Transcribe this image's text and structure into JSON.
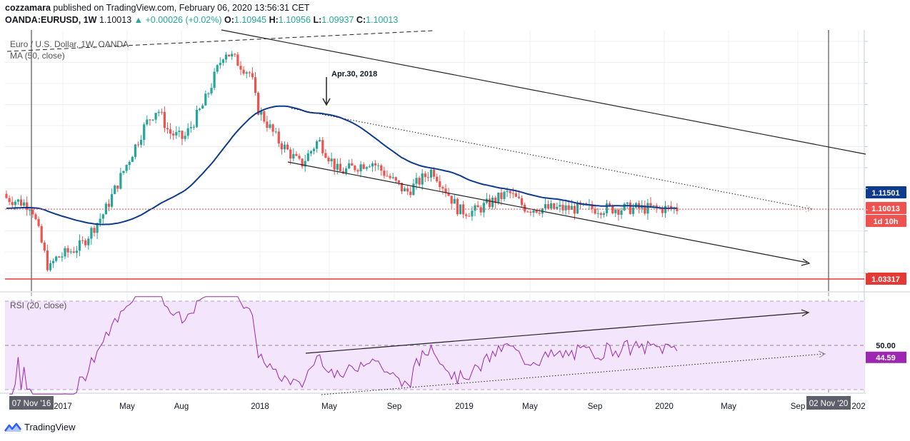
{
  "header": {
    "author": "cozzamara",
    "published_text": "published on TradingView.com, February 06, 2020 13:56:31 CET",
    "symbol": "OANDA:EURUSD, 1W",
    "last": "1.10013",
    "change": "▲ +0.00026 (+0.02%)",
    "o_label": "O:",
    "o": "1.10945",
    "h_label": "H:",
    "h": "1.10956",
    "l_label": "L:",
    "l": "1.09937",
    "c_label": "C:",
    "c": "1.10013"
  },
  "chart_data": [
    {
      "type": "candlestick",
      "title": "Euro / U.S. Dollar, 1W, OANDA",
      "indicator": "MA (50, close)",
      "annotation": "Apr.30, 2018",
      "x_ticks": [
        "07 Nov '16",
        "2017",
        "May",
        "Aug",
        "2018",
        "May",
        "Sep",
        "2019",
        "May",
        "Sep",
        "2020",
        "May",
        "Sep",
        "02 Nov '20",
        "202"
      ],
      "price_labels": [
        {
          "label": "1.11501",
          "value": 1.11501,
          "meaning": "MA (50) value",
          "color": "#0d3b8e"
        },
        {
          "label": "1.10013",
          "value": 1.10013,
          "meaning": "last price",
          "color": "#ef5350"
        },
        {
          "label": "1d 10h",
          "meaning": "time to bar close",
          "color": "#ef5350"
        },
        {
          "label": "1.03317",
          "value": 1.03317,
          "meaning": "horizontal level",
          "color": "#e53935"
        }
      ],
      "close_series_approx": [
        {
          "date": "2016-11-07",
          "close": 1.103
        },
        {
          "date": "2016-12-19",
          "close": 1.041
        },
        {
          "date": "2017-01-02",
          "close": 1.052
        },
        {
          "date": "2017-03-06",
          "close": 1.065
        },
        {
          "date": "2017-05-01",
          "close": 1.097
        },
        {
          "date": "2017-06-05",
          "close": 1.127
        },
        {
          "date": "2017-08-07",
          "close": 1.18
        },
        {
          "date": "2017-09-04",
          "close": 1.195
        },
        {
          "date": "2017-10-02",
          "close": 1.172
        },
        {
          "date": "2017-11-06",
          "close": 1.166
        },
        {
          "date": "2017-12-25",
          "close": 1.2
        },
        {
          "date": "2018-02-12",
          "close": 1.25
        },
        {
          "date": "2018-04-16",
          "close": 1.227
        },
        {
          "date": "2018-04-30",
          "close": 1.196
        },
        {
          "date": "2018-06-18",
          "close": 1.165
        },
        {
          "date": "2018-08-13",
          "close": 1.141
        },
        {
          "date": "2018-09-24",
          "close": 1.165
        },
        {
          "date": "2018-11-12",
          "close": 1.134
        },
        {
          "date": "2019-01-28",
          "close": 1.145
        },
        {
          "date": "2019-04-22",
          "close": 1.115
        },
        {
          "date": "2019-06-24",
          "close": 1.137
        },
        {
          "date": "2019-08-26",
          "close": 1.098
        },
        {
          "date": "2019-09-30",
          "close": 1.097
        },
        {
          "date": "2019-12-23",
          "close": 1.115
        },
        {
          "date": "2020-02-03",
          "close": 1.1
        }
      ]
    },
    {
      "type": "line",
      "title": "RSI (20, close)",
      "price_labels": [
        {
          "label": "50.00",
          "value": 50.0
        },
        {
          "label": "44.59",
          "value": 44.59
        }
      ]
    }
  ],
  "colors": {
    "up": "#26a69a",
    "down": "#ef5350",
    "ma": "#0d3b8e",
    "rsi": "#9c27b0",
    "rsi_band": "#f3e5fc",
    "level": "#e53935"
  },
  "footer": {
    "brand": "TradingView"
  }
}
